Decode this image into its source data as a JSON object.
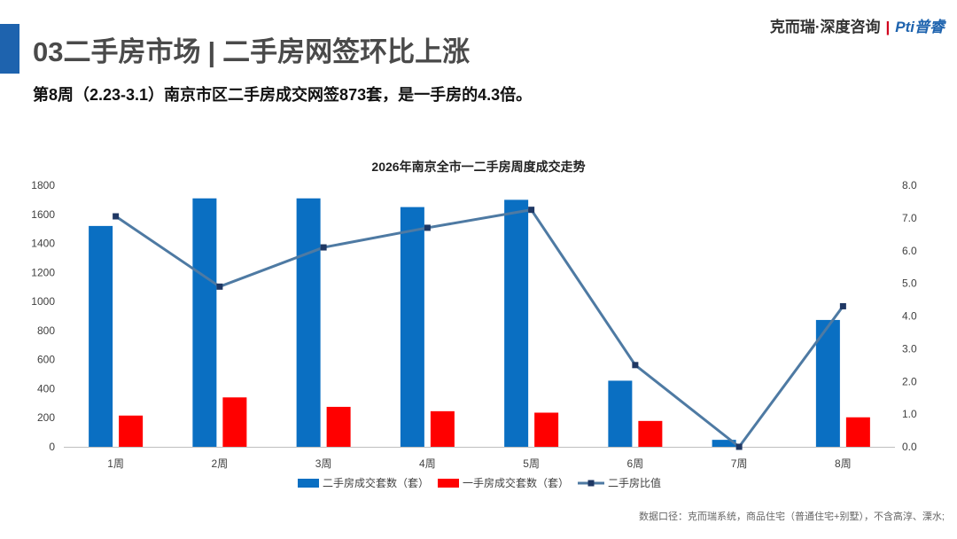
{
  "header": {
    "section_title": "03二手房市场",
    "separator": "|",
    "section_subtitle": "二手房网签环比上涨",
    "brand_name": "克而瑞·深度咨询",
    "brand_pipe": "|",
    "brand_logo": "Pti普睿"
  },
  "headline": "第8周（2.23-3.1）南京市区二手房成交网签873套，是一手房的4.3倍。",
  "footer": {
    "source": "数据口径：克而瑞系统，商品住宅（普通住宅+别墅），不含高淳、溧水;"
  },
  "colors": {
    "second_hand": "#0a6fc2",
    "new_home": "#ff0000",
    "ratio": "#4e7aa3",
    "ratio_marker": "#1f3864",
    "accent": "#1e63ae"
  },
  "chart_data": {
    "type": "bar",
    "title": "2026年南京全市一二手房周度成交走势",
    "categories": [
      "1周",
      "2周",
      "3周",
      "4周",
      "5周",
      "6周",
      "7周",
      "8周"
    ],
    "series": [
      {
        "name": "二手房成交套数（套）",
        "type": "bar",
        "axis": "left",
        "values": [
          1520,
          1710,
          1710,
          1650,
          1700,
          455,
          48,
          873
        ]
      },
      {
        "name": "一手房成交套数（套）",
        "type": "bar",
        "axis": "left",
        "values": [
          215,
          340,
          275,
          245,
          235,
          178,
          0,
          203
        ]
      },
      {
        "name": "二手房比值",
        "type": "line",
        "axis": "right",
        "values": [
          7.05,
          4.9,
          6.1,
          6.7,
          7.25,
          2.5,
          0.0,
          4.3
        ]
      }
    ],
    "ylim_left": [
      0,
      1800
    ],
    "yticks_left": [
      "0",
      "200",
      "400",
      "600",
      "800",
      "1000",
      "1200",
      "1400",
      "1600",
      "1800"
    ],
    "ylim_right": [
      0,
      8
    ],
    "yticks_right": [
      "0.0",
      "1.0",
      "2.0",
      "3.0",
      "4.0",
      "5.0",
      "6.0",
      "7.0",
      "8.0"
    ],
    "grid": false,
    "legend": "bottom"
  }
}
